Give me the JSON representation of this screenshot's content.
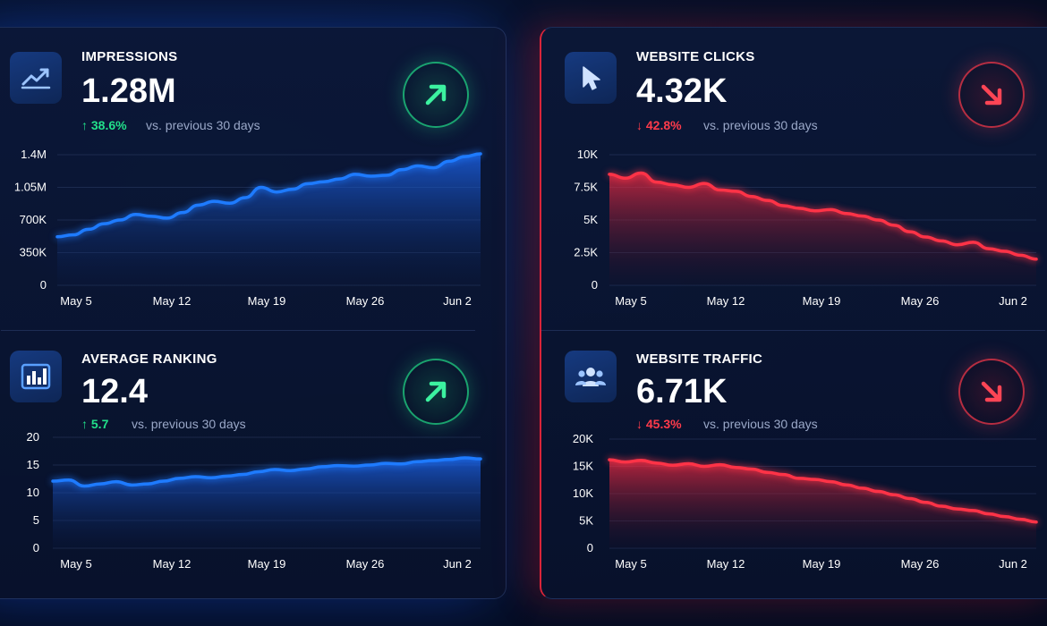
{
  "colors": {
    "up": "#22e08a",
    "down": "#ff3b4b",
    "blue_line": "#1e7bff",
    "red_line": "#ff3347"
  },
  "cards": [
    {
      "id": "impressions",
      "label": "IMPRESSIONS",
      "value": "1.28M",
      "change": "↑ 38.6%",
      "compare": "vs. previous 30 days",
      "trend": "up",
      "icon": "trend-line-icon"
    },
    {
      "id": "ranking",
      "label": "AVERAGE RANKING",
      "value": "12.4",
      "change": "↑ 5.7",
      "compare": "vs. previous 30 days",
      "trend": "up",
      "icon": "bar-chart-icon"
    },
    {
      "id": "clicks",
      "label": "WEBSITE CLICKS",
      "value": "4.32K",
      "change": "↓ 42.8%",
      "compare": "vs. previous 30 days",
      "trend": "down",
      "icon": "cursor-icon"
    },
    {
      "id": "traffic",
      "label": "WEBSITE TRAFFIC",
      "value": "6.71K",
      "change": "↓ 45.3%",
      "compare": "vs. previous 30 days",
      "trend": "down",
      "icon": "users-icon"
    }
  ],
  "chart_data": [
    {
      "id": "impressions",
      "type": "area",
      "x_ticks": [
        "May 5",
        "May 12",
        "May 19",
        "May 26",
        "Jun 2"
      ],
      "y_ticks": [
        "0",
        "350K",
        "700K",
        "1.05M",
        "1.4M"
      ],
      "ylim": [
        0,
        1400000
      ],
      "grid": true,
      "series": [
        {
          "values": [
            520000,
            540000,
            600000,
            660000,
            700000,
            760000,
            740000,
            720000,
            780000,
            860000,
            900000,
            880000,
            940000,
            1050000,
            1000000,
            1030000,
            1090000,
            1110000,
            1140000,
            1190000,
            1170000,
            1180000,
            1240000,
            1280000,
            1260000,
            1330000,
            1380000,
            1410000
          ]
        }
      ]
    },
    {
      "id": "ranking",
      "type": "area",
      "x_ticks": [
        "May 5",
        "May 12",
        "May 19",
        "May 26",
        "Jun 2"
      ],
      "y_ticks": [
        "0",
        "5",
        "10",
        "15",
        "20"
      ],
      "ylim": [
        0,
        20
      ],
      "grid": true,
      "series": [
        {
          "values": [
            12.1,
            12.3,
            11.2,
            11.6,
            12.0,
            11.4,
            11.6,
            12.1,
            12.6,
            12.9,
            12.7,
            13.0,
            13.3,
            13.8,
            14.2,
            14.0,
            14.3,
            14.7,
            14.9,
            14.8,
            15.0,
            15.3,
            15.2,
            15.6,
            15.8,
            16.0,
            16.3,
            16.1
          ]
        }
      ]
    },
    {
      "id": "clicks",
      "type": "area",
      "x_ticks": [
        "May 5",
        "May 12",
        "May 19",
        "May 26",
        "Jun 2"
      ],
      "y_ticks": [
        "0",
        "2.5K",
        "5K",
        "7.5K",
        "10K"
      ],
      "ylim": [
        0,
        10000
      ],
      "grid": true,
      "series": [
        {
          "values": [
            8500,
            8200,
            8600,
            7900,
            7700,
            7500,
            7800,
            7300,
            7200,
            6800,
            6500,
            6100,
            5900,
            5700,
            5800,
            5500,
            5300,
            5000,
            4600,
            4100,
            3700,
            3400,
            3100,
            3300,
            2800,
            2600,
            2300,
            2000
          ]
        }
      ]
    },
    {
      "id": "traffic",
      "type": "area",
      "x_ticks": [
        "May 5",
        "May 12",
        "May 19",
        "May 26",
        "Jun 2"
      ],
      "y_ticks": [
        "0",
        "5K",
        "10K",
        "15K",
        "20K"
      ],
      "ylim": [
        0,
        20000
      ],
      "grid": true,
      "series": [
        {
          "values": [
            16200,
            15800,
            16100,
            15600,
            15200,
            15500,
            15000,
            15300,
            14800,
            14500,
            13900,
            13500,
            12800,
            12600,
            12200,
            11600,
            11000,
            10400,
            9800,
            9100,
            8400,
            7700,
            7200,
            6900,
            6300,
            5800,
            5300,
            4800
          ]
        }
      ]
    }
  ]
}
